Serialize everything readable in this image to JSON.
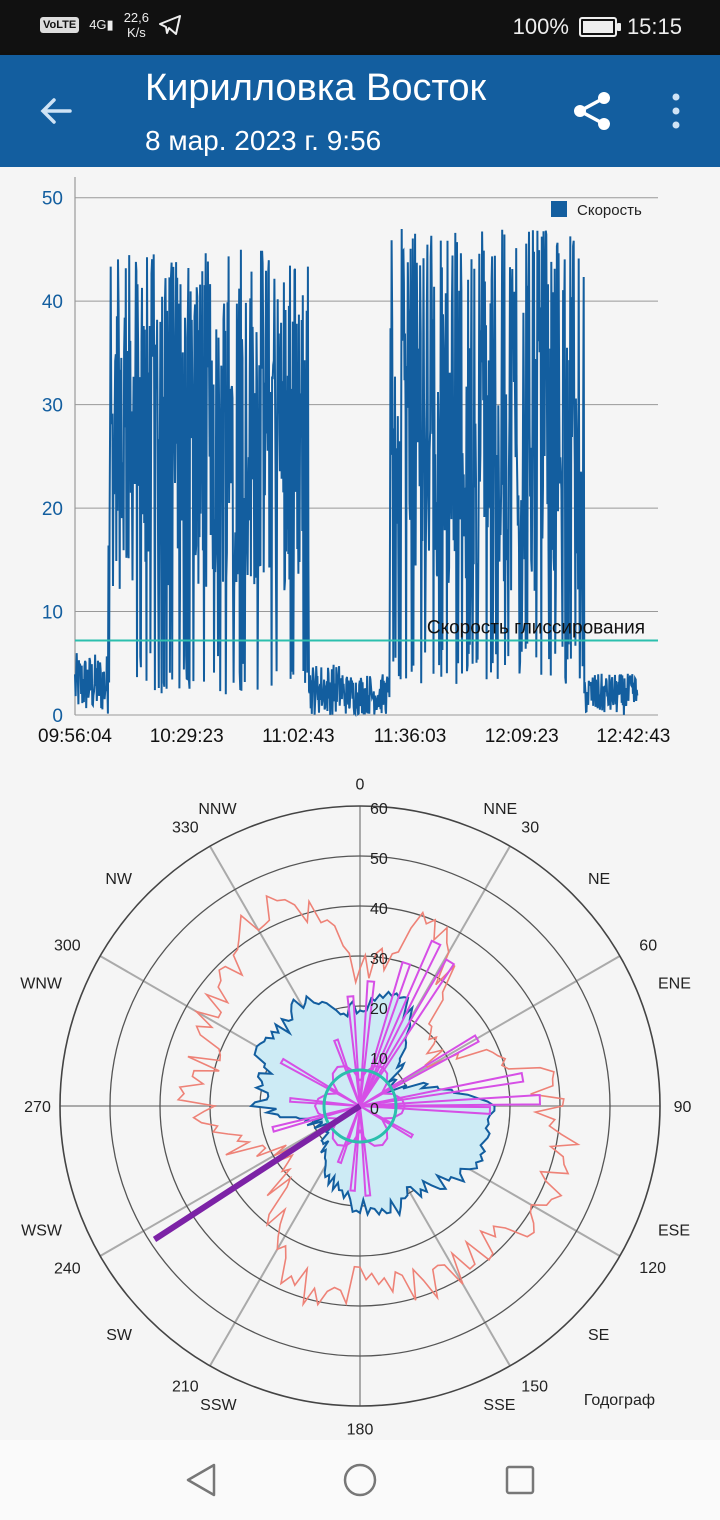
{
  "status": {
    "volte": "VoLTE",
    "network": "4G",
    "speed_value": "22,6",
    "speed_unit": "K/s",
    "battery": "100%",
    "time": "15:15"
  },
  "appbar": {
    "title": "Кирилловка Восток",
    "subtitle": "8 мар. 2023 г. 9:56"
  },
  "chart_data": [
    {
      "type": "line",
      "legend": "Скорость",
      "legend_position": "top-right",
      "x_ticks": [
        "09:56:04",
        "10:29:23",
        "11:02:43",
        "11:36:03",
        "12:09:23",
        "12:42:43"
      ],
      "y_ticks": [
        0,
        10,
        20,
        30,
        40,
        50
      ],
      "ylim": [
        0,
        52
      ],
      "threshold": {
        "label": "Скорость глиссирования",
        "value": 7.2,
        "color": "#2bbfad"
      },
      "series_color": "#135e9f",
      "grid": true,
      "note": "Dense speed trace; segments describe time span (minutes from start) and typical speed range",
      "segments": [
        {
          "t0": 0,
          "t1": 10,
          "low": 0,
          "high": 6
        },
        {
          "t0": 10,
          "t1": 70,
          "low": 2,
          "high": 45
        },
        {
          "t0": 70,
          "t1": 80,
          "low": 0,
          "high": 5
        },
        {
          "t0": 80,
          "t1": 94,
          "low": 0,
          "high": 4
        },
        {
          "t0": 94,
          "t1": 152,
          "low": 3,
          "high": 47
        },
        {
          "t0": 152,
          "t1": 168,
          "low": 0,
          "high": 4
        }
      ],
      "duration_min": 174
    },
    {
      "type": "polar",
      "r_ticks": [
        0,
        10,
        20,
        30,
        40,
        50,
        60
      ],
      "angle_labels": [
        {
          "deg": 0,
          "label": "0"
        },
        {
          "deg": 22.5,
          "label": "NNE"
        },
        {
          "deg": 30,
          "label": "30"
        },
        {
          "deg": 45,
          "label": "NE"
        },
        {
          "deg": 60,
          "label": "60"
        },
        {
          "deg": 67.5,
          "label": "ENE"
        },
        {
          "deg": 90,
          "label": "90"
        },
        {
          "deg": 112.5,
          "label": "ESE"
        },
        {
          "deg": 120,
          "label": "120"
        },
        {
          "deg": 135,
          "label": "SE"
        },
        {
          "deg": 150,
          "label": "150"
        },
        {
          "deg": 157.5,
          "label": "SSE"
        },
        {
          "deg": 180,
          "label": "180"
        },
        {
          "deg": 202.5,
          "label": "SSW"
        },
        {
          "deg": 210,
          "label": "210"
        },
        {
          "deg": 225,
          "label": "SW"
        },
        {
          "deg": 240,
          "label": "240"
        },
        {
          "deg": 247.5,
          "label": "WSW"
        },
        {
          "deg": 270,
          "label": "270"
        },
        {
          "deg": 292.5,
          "label": "WNW"
        },
        {
          "deg": 300,
          "label": "300"
        },
        {
          "deg": 315,
          "label": "NW"
        },
        {
          "deg": 330,
          "label": "330"
        },
        {
          "deg": 337.5,
          "label": "NNW"
        }
      ],
      "caption": "Годограф",
      "wind_direction_deg": 237,
      "wind_length_r": 49,
      "planing_circle_r": 7.2,
      "colors": {
        "max": "#ee8277",
        "avg_line": "#135e9f",
        "avg_fill": "#cdebf5",
        "hodograph": "#d64fe6",
        "wind": "#7c22a6",
        "planing": "#2bbfad"
      },
      "max_profile": [
        [
          0,
          25
        ],
        [
          20,
          38
        ],
        [
          30,
          35
        ],
        [
          45,
          17
        ],
        [
          60,
          18
        ],
        [
          70,
          30
        ],
        [
          80,
          37
        ],
        [
          90,
          38
        ],
        [
          105,
          42
        ],
        [
          120,
          40
        ],
        [
          135,
          38
        ],
        [
          150,
          38
        ],
        [
          165,
          37
        ],
        [
          180,
          35
        ],
        [
          195,
          38
        ],
        [
          210,
          33
        ],
        [
          225,
          23
        ],
        [
          240,
          18
        ],
        [
          255,
          28
        ],
        [
          270,
          33
        ],
        [
          285,
          33
        ],
        [
          300,
          35
        ],
        [
          315,
          38
        ],
        [
          330,
          44
        ],
        [
          345,
          42
        ]
      ],
      "avg_profile": [
        [
          0,
          20
        ],
        [
          20,
          23
        ],
        [
          30,
          20
        ],
        [
          45,
          11
        ],
        [
          60,
          6
        ],
        [
          75,
          15
        ],
        [
          90,
          26
        ],
        [
          105,
          27
        ],
        [
          120,
          25
        ],
        [
          135,
          22
        ],
        [
          150,
          20
        ],
        [
          165,
          22
        ],
        [
          180,
          20
        ],
        [
          195,
          18
        ],
        [
          210,
          14
        ],
        [
          225,
          9
        ],
        [
          240,
          8
        ],
        [
          255,
          10
        ],
        [
          270,
          20
        ],
        [
          285,
          20
        ],
        [
          300,
          22
        ],
        [
          315,
          22
        ],
        [
          330,
          24
        ],
        [
          345,
          20
        ]
      ],
      "hodograph_spikes": [
        {
          "deg": 5,
          "r": 25
        },
        {
          "deg": 18,
          "r": 30
        },
        {
          "deg": 25,
          "r": 36
        },
        {
          "deg": 32,
          "r": 34
        },
        {
          "deg": 60,
          "r": 27
        },
        {
          "deg": 80,
          "r": 33
        },
        {
          "deg": 88,
          "r": 36
        },
        {
          "deg": 92,
          "r": 26
        },
        {
          "deg": 120,
          "r": 12
        },
        {
          "deg": 175,
          "r": 18
        },
        {
          "deg": 185,
          "r": 17
        },
        {
          "deg": 200,
          "r": 12
        },
        {
          "deg": 255,
          "r": 18
        },
        {
          "deg": 275,
          "r": 14
        },
        {
          "deg": 300,
          "r": 18
        },
        {
          "deg": 340,
          "r": 14
        },
        {
          "deg": 355,
          "r": 22
        }
      ]
    }
  ]
}
